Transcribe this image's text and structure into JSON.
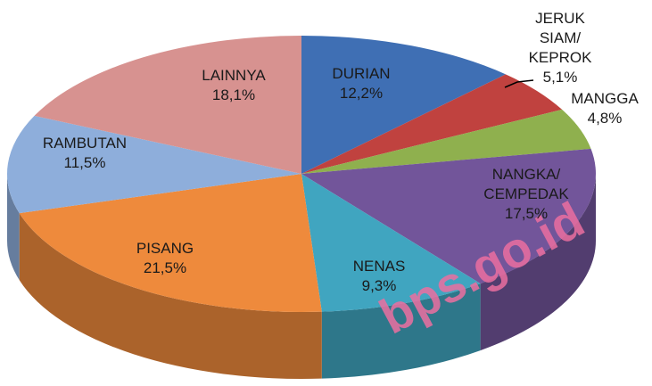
{
  "chart_data": {
    "type": "pie3d",
    "categories": [
      "DURIAN",
      "JERUK SIAM/\nKEPROK",
      "MANGGA",
      "NANGKA/\nCEMPEDAK",
      "NENAS",
      "PISANG",
      "RAMBUTAN",
      "LAINNYA"
    ],
    "values": [
      12.2,
      5.1,
      4.8,
      17.5,
      9.3,
      21.5,
      11.5,
      18.1
    ],
    "value_labels": [
      "12,2%",
      "5,1%",
      "4,8%",
      "17,5%",
      "9,3%",
      "21,5%",
      "11,5%",
      "18,1%"
    ],
    "colors": [
      "#3f6fb4",
      "#c0423f",
      "#8fb04e",
      "#72559a",
      "#40a5c0",
      "#ee8a3c",
      "#8eaedb",
      "#d79290"
    ],
    "watermark": "bps.go.id"
  }
}
